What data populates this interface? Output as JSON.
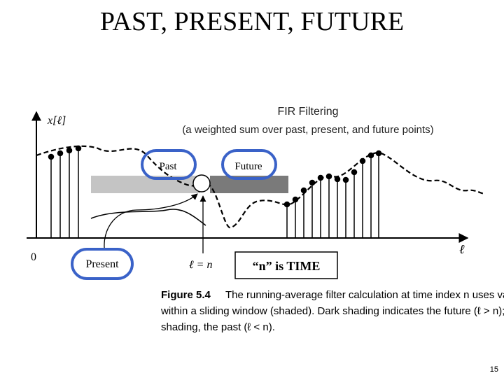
{
  "slide": {
    "title": "PAST, PRESENT, FUTURE",
    "page_number": "15"
  },
  "figure": {
    "heading": "FIR Filtering",
    "subheading": "(a weighted sum over past, present, and future points)",
    "y_axis_label": "x[ℓ]",
    "x_axis_label": "ℓ",
    "origin_label": "0",
    "past_label": "Past",
    "future_label": "Future",
    "present_label": "Present",
    "n_position_label": "ℓ = n",
    "time_note": "“n” is TIME",
    "caption": {
      "figure_number": "Figure 5.4",
      "line1": "The running-average filter calculation at time index n uses values",
      "line2": "within a sliding window (shaded). Dark shading indicates the future (ℓ > n); light",
      "line3": "shading, the past (ℓ < n)."
    },
    "colors": {
      "past_shading": "#c4c4c4",
      "future_shading": "#7a7a7a",
      "highlight_ring": "#3a62c8"
    }
  }
}
